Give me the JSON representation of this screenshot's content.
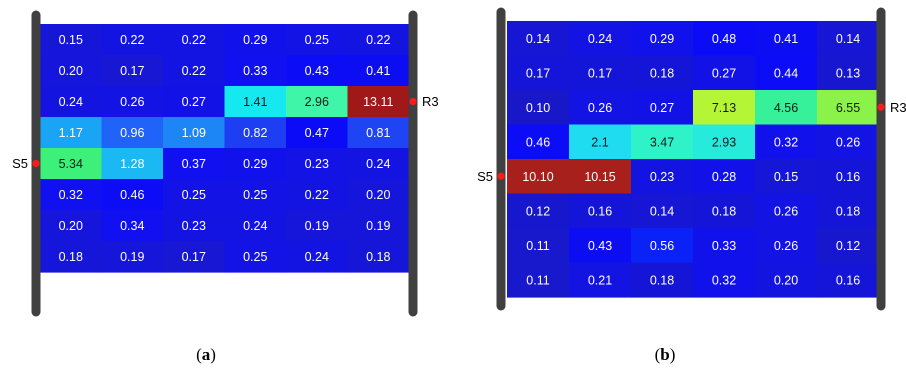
{
  "chart_data": [
    {
      "type": "heatmap",
      "panel": "a",
      "caption": {
        "open": "(",
        "letter": "a",
        "close": ")"
      },
      "left_label": "S5",
      "left_label_row": 4,
      "right_label": "R3",
      "right_label_row": 2,
      "rows": [
        [
          0.15,
          0.22,
          0.22,
          0.29,
          0.25,
          0.22
        ],
        [
          0.2,
          0.17,
          0.22,
          0.33,
          0.43,
          0.41
        ],
        [
          0.24,
          0.26,
          0.27,
          1.41,
          2.96,
          13.11
        ],
        [
          1.17,
          0.96,
          1.09,
          0.82,
          0.47,
          0.81
        ],
        [
          5.34,
          1.28,
          0.37,
          0.29,
          0.23,
          0.24
        ],
        [
          0.32,
          0.46,
          0.25,
          0.25,
          0.22,
          0.2
        ],
        [
          0.2,
          0.34,
          0.23,
          0.24,
          0.19,
          0.19
        ],
        [
          0.18,
          0.19,
          0.17,
          0.25,
          0.24,
          0.18
        ]
      ],
      "labels": [
        [
          "0.15",
          "0.22",
          "0.22",
          "0.29",
          "0.25",
          "0.22"
        ],
        [
          "0.20",
          "0.17",
          "0.22",
          "0.33",
          "0.43",
          "0.41"
        ],
        [
          "0.24",
          "0.26",
          "0.27",
          "1.41",
          "2.96",
          "13.11"
        ],
        [
          "1.17",
          "0.96",
          "1.09",
          "0.82",
          "0.47",
          "0.81"
        ],
        [
          "5.34",
          "1.28",
          "0.37",
          "0.29",
          "0.23",
          "0.24"
        ],
        [
          "0.32",
          "0.46",
          "0.25",
          "0.25",
          "0.22",
          "0.20"
        ],
        [
          "0.20",
          "0.34",
          "0.23",
          "0.24",
          "0.19",
          "0.19"
        ],
        [
          "0.18",
          "0.19",
          "0.17",
          "0.25",
          "0.24",
          "0.18"
        ]
      ],
      "cell_colors": [
        [
          "#1616d8",
          "#1414e2",
          "#1414e2",
          "#1111ec",
          "#1313e6",
          "#1414e2"
        ],
        [
          "#1515dc",
          "#1717d4",
          "#1414e2",
          "#1010f0",
          "#0c0cf6",
          "#0d0df4"
        ],
        [
          "#1414e0",
          "#1313e4",
          "#1212e6",
          "#16e8f0",
          "#3ef5a8",
          "#a01818"
        ],
        [
          "#1aa4f6",
          "#1f63f8",
          "#1c86f6",
          "#1e3ef4",
          "#0b0bf8",
          "#1e44f4"
        ],
        [
          "#3df07a",
          "#1bb9f4",
          "#1010f0",
          "#1111ec",
          "#1313e6",
          "#1414e2"
        ],
        [
          "#1010f0",
          "#0c0cf6",
          "#1313e6",
          "#1313e6",
          "#1414e2",
          "#1515dc"
        ],
        [
          "#1515dc",
          "#1010f0",
          "#1414e2",
          "#1414e2",
          "#1616da",
          "#1616da"
        ],
        [
          "#1616d8",
          "#1616da",
          "#1717d4",
          "#1313e6",
          "#1414e2",
          "#1616d8"
        ]
      ],
      "dark_text_cells": [
        [
          2,
          3
        ],
        [
          2,
          4
        ],
        [
          4,
          0
        ]
      ]
    },
    {
      "type": "heatmap",
      "panel": "b",
      "caption": {
        "open": "(",
        "letter": "b",
        "close": ")"
      },
      "left_label": "S5",
      "left_label_row": 4,
      "right_label": "R3",
      "right_label_row": 2,
      "rows": [
        [
          0.14,
          0.24,
          0.29,
          0.48,
          0.41,
          0.14
        ],
        [
          0.17,
          0.17,
          0.18,
          0.27,
          0.44,
          0.13
        ],
        [
          0.1,
          0.26,
          0.27,
          7.13,
          4.56,
          6.55
        ],
        [
          0.46,
          2.1,
          3.47,
          2.93,
          0.32,
          0.26
        ],
        [
          10.1,
          10.15,
          0.23,
          0.28,
          0.15,
          0.16
        ],
        [
          0.12,
          0.16,
          0.14,
          0.18,
          0.26,
          0.18
        ],
        [
          0.11,
          0.43,
          0.56,
          0.33,
          0.26,
          0.12
        ],
        [
          0.11,
          0.21,
          0.18,
          0.32,
          0.2,
          0.16
        ]
      ],
      "labels": [
        [
          "0.14",
          "0.24",
          "0.29",
          "0.48",
          "0.41",
          "0.14"
        ],
        [
          "0.17",
          "0.17",
          "0.18",
          "0.27",
          "0.44",
          "0.13"
        ],
        [
          "0.10",
          "0.26",
          "0.27",
          "7.13",
          "4.56",
          "6.55"
        ],
        [
          "0.46",
          "2.1",
          "3.47",
          "2.93",
          "0.32",
          "0.26"
        ],
        [
          "10.10",
          "10.15",
          "0.23",
          "0.28",
          "0.15",
          "0.16"
        ],
        [
          "0.12",
          "0.16",
          "0.14",
          "0.18",
          "0.26",
          "0.18"
        ],
        [
          "0.11",
          "0.43",
          "0.56",
          "0.33",
          "0.26",
          "0.12"
        ],
        [
          "0.11",
          "0.21",
          "0.18",
          "0.32",
          "0.20",
          "0.16"
        ]
      ],
      "cell_colors": [
        [
          "#1616d4",
          "#1313e4",
          "#1111ec",
          "#0b0bf8",
          "#0d0df4",
          "#1616d4"
        ],
        [
          "#1515da",
          "#1515da",
          "#1515d8",
          "#1212e6",
          "#0c0cf6",
          "#1717d0"
        ],
        [
          "#1818c8",
          "#1313e4",
          "#1212e6",
          "#b4f535",
          "#37f09a",
          "#8af248"
        ],
        [
          "#0c0cf6",
          "#20dcf0",
          "#2ef2c8",
          "#26eadc",
          "#1111ec",
          "#1313e4"
        ],
        [
          "#a8201c",
          "#a8201c",
          "#1414e0",
          "#1212e8",
          "#1616d6",
          "#1515d8"
        ],
        [
          "#1717ce",
          "#1515d8",
          "#1616d4",
          "#1515d8",
          "#1313e4",
          "#1515d8"
        ],
        [
          "#1818cc",
          "#0d0df4",
          "#0a22f8",
          "#1111ec",
          "#1313e4",
          "#1717ce"
        ],
        [
          "#1818cc",
          "#1414e2",
          "#1515d8",
          "#1111ec",
          "#1414e0",
          "#1515d8"
        ]
      ],
      "dark_text_cells": [
        [
          2,
          3
        ],
        [
          2,
          4
        ],
        [
          2,
          5
        ],
        [
          3,
          1
        ],
        [
          3,
          2
        ],
        [
          3,
          3
        ]
      ]
    }
  ]
}
